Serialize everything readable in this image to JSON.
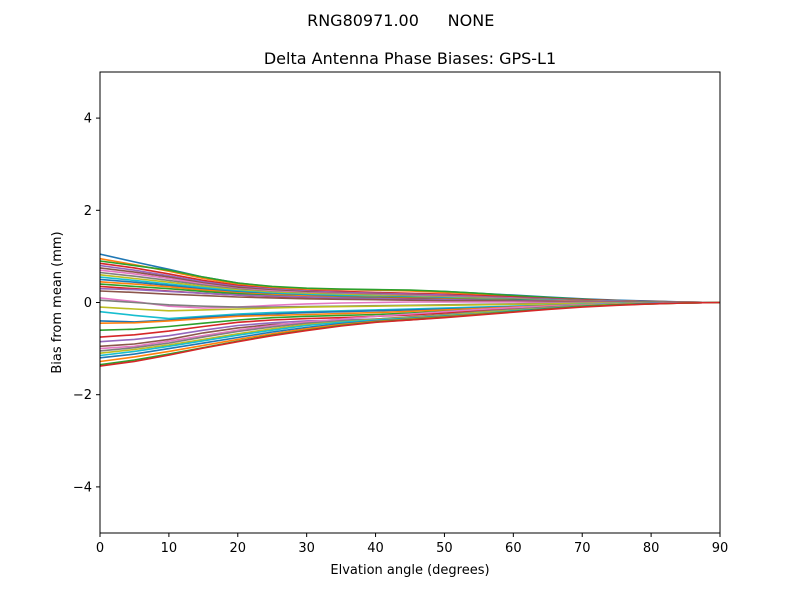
{
  "suptitle": {
    "id": "RNG80971.00",
    "radome": "NONE"
  },
  "chart_data": {
    "type": "line",
    "title": "Delta Antenna Phase Biases: GPS-L1",
    "xlabel": "Elvation angle (degrees)",
    "ylabel": "Bias from mean (mm)",
    "xlim": [
      0,
      90
    ],
    "ylim": [
      -5,
      5
    ],
    "xticks": [
      0,
      10,
      20,
      30,
      40,
      50,
      60,
      70,
      80,
      90
    ],
    "yticks": [
      -4,
      -2,
      0,
      2,
      4
    ],
    "ytick_labels": [
      "−4",
      "−2",
      "0",
      "2",
      "4"
    ],
    "grid": false,
    "legend": "none",
    "colors": [
      "#1f77b4",
      "#ff7f0e",
      "#2ca02c",
      "#d62728",
      "#9467bd",
      "#8c564b",
      "#e377c2",
      "#7f7f7f",
      "#bcbd22",
      "#17becf"
    ],
    "x": [
      0,
      5,
      10,
      15,
      20,
      25,
      30,
      35,
      40,
      45,
      50,
      55,
      60,
      65,
      70,
      75,
      80,
      85,
      90
    ],
    "series": [
      {
        "values": [
          1.05,
          0.88,
          0.72,
          0.55,
          0.42,
          0.34,
          0.3,
          0.28,
          0.27,
          0.26,
          0.24,
          0.2,
          0.16,
          0.12,
          0.08,
          0.05,
          0.03,
          0.01,
          0
        ]
      },
      {
        "values": [
          0.95,
          0.82,
          0.68,
          0.52,
          0.4,
          0.33,
          0.29,
          0.28,
          0.27,
          0.25,
          0.22,
          0.18,
          0.14,
          0.1,
          0.07,
          0.04,
          0.02,
          0.01,
          0
        ]
      },
      {
        "values": [
          0.9,
          0.8,
          0.7,
          0.55,
          0.42,
          0.35,
          0.31,
          0.29,
          0.28,
          0.27,
          0.24,
          0.2,
          0.15,
          0.11,
          0.07,
          0.04,
          0.02,
          0.01,
          0
        ]
      },
      {
        "values": [
          0.85,
          0.75,
          0.62,
          0.48,
          0.37,
          0.3,
          0.26,
          0.24,
          0.22,
          0.2,
          0.18,
          0.15,
          0.12,
          0.09,
          0.06,
          0.04,
          0.02,
          0.01,
          0
        ]
      },
      {
        "values": [
          0.8,
          0.7,
          0.58,
          0.45,
          0.35,
          0.29,
          0.25,
          0.22,
          0.2,
          0.18,
          0.16,
          0.13,
          0.1,
          0.08,
          0.05,
          0.03,
          0.02,
          0.01,
          0
        ]
      },
      {
        "values": [
          0.75,
          0.66,
          0.55,
          0.42,
          0.33,
          0.27,
          0.23,
          0.2,
          0.18,
          0.16,
          0.14,
          0.12,
          0.09,
          0.07,
          0.05,
          0.03,
          0.02,
          0.01,
          0
        ]
      },
      {
        "values": [
          0.7,
          0.62,
          0.52,
          0.4,
          0.3,
          0.25,
          0.21,
          0.19,
          0.17,
          0.15,
          0.13,
          0.11,
          0.09,
          0.06,
          0.04,
          0.03,
          0.01,
          0.0,
          0
        ]
      },
      {
        "values": [
          0.65,
          0.57,
          0.48,
          0.38,
          0.29,
          0.23,
          0.2,
          0.18,
          0.16,
          0.14,
          0.12,
          0.1,
          0.08,
          0.06,
          0.04,
          0.02,
          0.01,
          0.0,
          0
        ]
      },
      {
        "values": [
          0.6,
          0.52,
          0.44,
          0.35,
          0.27,
          0.22,
          0.19,
          0.17,
          0.15,
          0.13,
          0.11,
          0.09,
          0.07,
          0.05,
          0.03,
          0.02,
          0.01,
          0.0,
          0
        ]
      },
      {
        "values": [
          0.55,
          0.48,
          0.4,
          0.32,
          0.25,
          0.2,
          0.17,
          0.15,
          0.13,
          0.12,
          0.1,
          0.08,
          0.06,
          0.05,
          0.03,
          0.02,
          0.01,
          0.0,
          0
        ]
      },
      {
        "values": [
          0.5,
          0.44,
          0.37,
          0.29,
          0.23,
          0.18,
          0.15,
          0.13,
          0.12,
          0.11,
          0.09,
          0.07,
          0.06,
          0.04,
          0.03,
          0.02,
          0.01,
          0.0,
          0
        ]
      },
      {
        "values": [
          0.45,
          0.4,
          0.34,
          0.27,
          0.21,
          0.17,
          0.14,
          0.12,
          0.11,
          0.1,
          0.08,
          0.07,
          0.05,
          0.04,
          0.03,
          0.01,
          0.01,
          0.0,
          0
        ]
      },
      {
        "values": [
          0.4,
          0.35,
          0.3,
          0.24,
          0.19,
          0.15,
          0.12,
          0.11,
          0.1,
          0.09,
          0.07,
          0.06,
          0.05,
          0.03,
          0.02,
          0.01,
          0.01,
          0.0,
          0
        ]
      },
      {
        "values": [
          0.35,
          0.3,
          0.25,
          0.2,
          0.16,
          0.13,
          0.11,
          0.1,
          0.09,
          0.08,
          0.06,
          0.05,
          0.04,
          0.03,
          0.02,
          0.01,
          0.0,
          0.0,
          0
        ]
      },
      {
        "values": [
          0.3,
          0.28,
          0.24,
          0.2,
          0.16,
          0.14,
          0.12,
          0.1,
          0.09,
          0.07,
          0.06,
          0.05,
          0.04,
          0.03,
          0.02,
          0.01,
          0.0,
          0.0,
          0
        ]
      },
      {
        "values": [
          0.25,
          0.22,
          0.18,
          0.15,
          0.12,
          0.1,
          0.08,
          0.07,
          0.06,
          0.05,
          0.04,
          0.04,
          0.03,
          0.02,
          0.01,
          0.01,
          0.0,
          0.0,
          0
        ]
      },
      {
        "values": [
          0.1,
          0.02,
          -0.08,
          -0.12,
          -0.1,
          -0.06,
          -0.03,
          -0.01,
          0.0,
          0.01,
          0.01,
          0.01,
          0.01,
          0.0,
          0.0,
          0.0,
          0.0,
          0.0,
          0
        ]
      },
      {
        "values": [
          0.05,
          0.0,
          -0.05,
          -0.08,
          -0.1,
          -0.1,
          -0.09,
          -0.08,
          -0.07,
          -0.06,
          -0.05,
          -0.04,
          -0.03,
          -0.02,
          -0.01,
          -0.01,
          0.0,
          0.0,
          0
        ]
      },
      {
        "values": [
          -0.1,
          -0.14,
          -0.18,
          -0.16,
          -0.14,
          -0.12,
          -0.1,
          -0.09,
          -0.08,
          -0.07,
          -0.06,
          -0.05,
          -0.04,
          -0.03,
          -0.02,
          -0.01,
          -0.01,
          0.0,
          0
        ]
      },
      {
        "values": [
          -0.2,
          -0.28,
          -0.35,
          -0.3,
          -0.25,
          -0.22,
          -0.2,
          -0.18,
          -0.16,
          -0.14,
          -0.12,
          -0.1,
          -0.08,
          -0.06,
          -0.04,
          -0.02,
          -0.01,
          0.0,
          0
        ]
      },
      {
        "values": [
          -0.4,
          -0.42,
          -0.38,
          -0.32,
          -0.28,
          -0.25,
          -0.22,
          -0.2,
          -0.18,
          -0.16,
          -0.14,
          -0.12,
          -0.09,
          -0.07,
          -0.05,
          -0.03,
          -0.01,
          0.0,
          0
        ]
      },
      {
        "values": [
          -0.45,
          -0.44,
          -0.4,
          -0.35,
          -0.3,
          -0.28,
          -0.26,
          -0.24,
          -0.22,
          -0.19,
          -0.16,
          -0.13,
          -0.1,
          -0.07,
          -0.05,
          -0.03,
          -0.01,
          0.0,
          0
        ]
      },
      {
        "values": [
          -0.6,
          -0.58,
          -0.52,
          -0.45,
          -0.38,
          -0.33,
          -0.3,
          -0.28,
          -0.26,
          -0.23,
          -0.19,
          -0.15,
          -0.12,
          -0.09,
          -0.06,
          -0.03,
          -0.02,
          0.0,
          0
        ]
      },
      {
        "values": [
          -0.75,
          -0.7,
          -0.62,
          -0.52,
          -0.43,
          -0.38,
          -0.35,
          -0.33,
          -0.3,
          -0.27,
          -0.23,
          -0.18,
          -0.14,
          -0.1,
          -0.07,
          -0.04,
          -0.02,
          -0.01,
          0
        ]
      },
      {
        "values": [
          -0.85,
          -0.8,
          -0.72,
          -0.6,
          -0.5,
          -0.44,
          -0.4,
          -0.38,
          -0.36,
          -0.32,
          -0.27,
          -0.22,
          -0.17,
          -0.12,
          -0.08,
          -0.05,
          -0.02,
          -0.01,
          0
        ]
      },
      {
        "values": [
          -0.95,
          -0.9,
          -0.8,
          -0.66,
          -0.55,
          -0.48,
          -0.45,
          -0.45,
          -0.42,
          -0.38,
          -0.32,
          -0.25,
          -0.19,
          -0.14,
          -0.09,
          -0.05,
          -0.02,
          -0.01,
          0
        ]
      },
      {
        "values": [
          -1.0,
          -0.95,
          -0.84,
          -0.72,
          -0.6,
          -0.5,
          -0.42,
          -0.36,
          -0.3,
          -0.25,
          -0.2,
          -0.15,
          -0.11,
          -0.08,
          -0.05,
          -0.03,
          -0.01,
          0.0,
          0
        ]
      },
      {
        "values": [
          -1.05,
          -0.98,
          -0.88,
          -0.75,
          -0.63,
          -0.53,
          -0.45,
          -0.4,
          -0.36,
          -0.31,
          -0.26,
          -0.2,
          -0.15,
          -0.1,
          -0.06,
          -0.04,
          -0.02,
          -0.01,
          0
        ]
      },
      {
        "values": [
          -1.1,
          -1.02,
          -0.92,
          -0.8,
          -0.68,
          -0.57,
          -0.48,
          -0.42,
          -0.37,
          -0.33,
          -0.28,
          -0.22,
          -0.17,
          -0.12,
          -0.07,
          -0.04,
          -0.02,
          -0.01,
          0
        ]
      },
      {
        "values": [
          -1.15,
          -1.06,
          -0.95,
          -0.83,
          -0.71,
          -0.6,
          -0.5,
          -0.43,
          -0.38,
          -0.34,
          -0.29,
          -0.24,
          -0.18,
          -0.13,
          -0.08,
          -0.05,
          -0.02,
          -0.01,
          0
        ]
      },
      {
        "values": [
          -1.2,
          -1.12,
          -1.0,
          -0.88,
          -0.76,
          -0.64,
          -0.54,
          -0.46,
          -0.4,
          -0.35,
          -0.3,
          -0.25,
          -0.19,
          -0.13,
          -0.08,
          -0.05,
          -0.02,
          -0.01,
          0
        ]
      },
      {
        "values": [
          -1.28,
          -1.18,
          -1.06,
          -0.93,
          -0.8,
          -0.68,
          -0.57,
          -0.48,
          -0.41,
          -0.36,
          -0.31,
          -0.25,
          -0.2,
          -0.14,
          -0.09,
          -0.05,
          -0.03,
          -0.01,
          0
        ]
      },
      {
        "values": [
          -1.35,
          -1.25,
          -1.12,
          -0.98,
          -0.84,
          -0.71,
          -0.6,
          -0.5,
          -0.42,
          -0.37,
          -0.32,
          -0.26,
          -0.2,
          -0.14,
          -0.09,
          -0.05,
          -0.03,
          -0.01,
          0
        ]
      },
      {
        "values": [
          -1.38,
          -1.28,
          -1.14,
          -0.99,
          -0.85,
          -0.72,
          -0.61,
          -0.51,
          -0.43,
          -0.38,
          -0.33,
          -0.27,
          -0.21,
          -0.15,
          -0.1,
          -0.06,
          -0.03,
          -0.01,
          0
        ]
      }
    ]
  }
}
